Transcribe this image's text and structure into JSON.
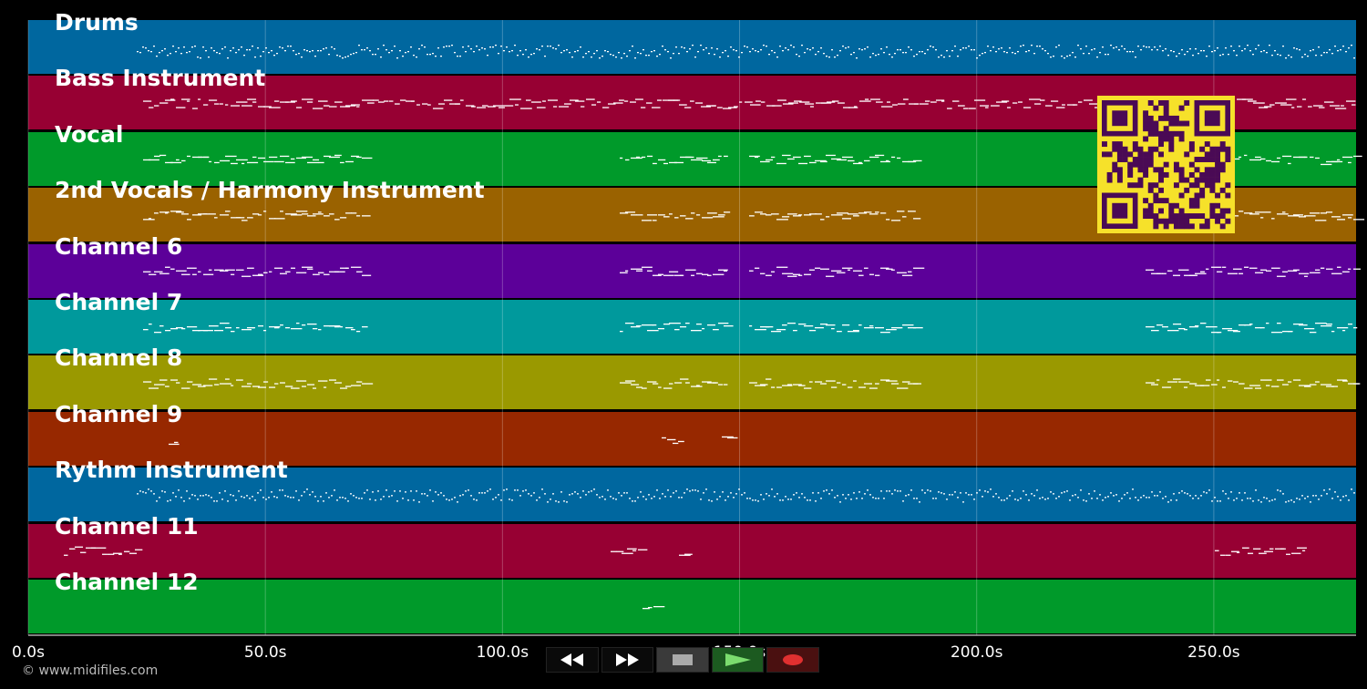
{
  "tracks": [
    {
      "label": "Drums",
      "color": "#00679f"
    },
    {
      "label": "Bass Instrument",
      "color": "#970033"
    },
    {
      "label": "Vocal",
      "color": "#009a2a"
    },
    {
      "label": "2nd Vocals / Harmony Instrument",
      "color": "#9a6200"
    },
    {
      "label": "Channel 6",
      "color": "#5c0099"
    },
    {
      "label": "Channel 7",
      "color": "#00999c"
    },
    {
      "label": "Channel 8",
      "color": "#9a9900"
    },
    {
      "label": "Channel 9",
      "color": "#972800"
    },
    {
      "label": "Rythm Instrument",
      "color": "#00679f"
    },
    {
      "label": "Channel 11",
      "color": "#970033"
    },
    {
      "label": "Channel 12",
      "color": "#009a2a"
    }
  ],
  "time_axis": {
    "ticks": [
      "0.0s",
      "50.0s",
      "100.0s",
      "150.0s",
      "200.0s",
      "250.0s"
    ],
    "tick_values": [
      0,
      50,
      100,
      150,
      200,
      250
    ],
    "range": [
      0,
      280
    ],
    "unit": "s"
  },
  "transport": {
    "buttons": [
      {
        "name": "rewind-button",
        "icon": "rewind-icon"
      },
      {
        "name": "fast-forward-button",
        "icon": "fast-forward-icon"
      },
      {
        "name": "stop-button",
        "icon": "stop-icon"
      },
      {
        "name": "play-button",
        "icon": "play-icon"
      },
      {
        "name": "record-button",
        "icon": "record-icon"
      }
    ]
  },
  "copyright": "© www.midifiles.com",
  "colors": {
    "background": "#000000",
    "notes": "#ffffff",
    "qr_fg": "#4a0a55",
    "qr_bg": "#f6e12a"
  }
}
